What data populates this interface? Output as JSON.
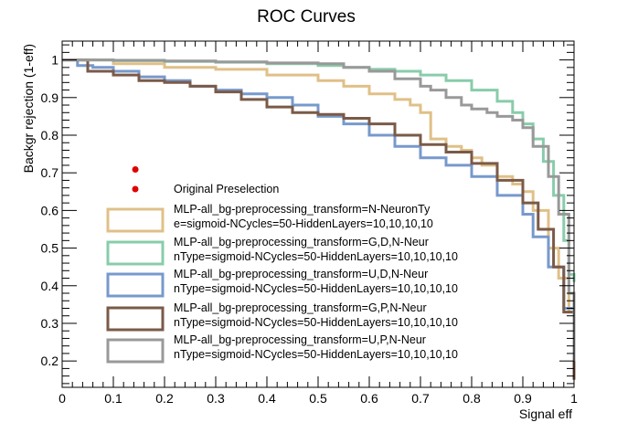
{
  "chart_data": {
    "type": "line",
    "title": "ROC Curves",
    "xlabel": "Signal eff",
    "ylabel": "Backgr rejection (1-eff)",
    "xlim": [
      0,
      1
    ],
    "ylim": [
      0.13,
      1.05
    ],
    "x_ticks": [
      0,
      0.1,
      0.2,
      0.3,
      0.4,
      0.5,
      0.6,
      0.7,
      0.8,
      0.9,
      1
    ],
    "x_tick_labels": [
      "0",
      "0.1",
      "0.2",
      "0.3",
      "0.4",
      "0.5",
      "0.6",
      "0.7",
      "0.8",
      "0.9",
      "1"
    ],
    "y_ticks": [
      0.2,
      0.3,
      0.4,
      0.5,
      0.6,
      0.7,
      0.8,
      0.9,
      1
    ],
    "y_tick_labels": [
      "0.2",
      "0.3",
      "0.4",
      "0.5",
      "0.6",
      "0.7",
      "0.8",
      "0.9",
      "1"
    ],
    "grid": false,
    "legend_position": "bottom-left",
    "marker": {
      "name": "Original Preselection",
      "x": 0.143,
      "y": 0.709,
      "color": "#e00000"
    },
    "series": [
      {
        "name": "MLP-all_bg-preprocessing_transform=N-NeuronType=sigmoid-NCycles=50-HiddenLayers=10,10,10,10",
        "legend_lines": [
          "MLP-all_bg-preprocessing_transform=N-NeuronTy",
          "e=sigmoid-NCycles=50-HiddenLayers=10,10,10,10"
        ],
        "color": "#e0c088",
        "x": [
          0,
          0.1,
          0.2,
          0.3,
          0.4,
          0.5,
          0.55,
          0.6,
          0.65,
          0.68,
          0.7,
          0.72,
          0.75,
          0.78,
          0.8,
          0.82,
          0.85,
          0.88,
          0.9,
          0.92,
          0.95,
          0.97,
          0.99,
          1.0
        ],
        "y": [
          1.0,
          0.99,
          0.98,
          0.975,
          0.96,
          0.945,
          0.93,
          0.91,
          0.895,
          0.88,
          0.86,
          0.79,
          0.77,
          0.76,
          0.74,
          0.72,
          0.69,
          0.67,
          0.65,
          0.6,
          0.5,
          0.42,
          0.33,
          0.2
        ]
      },
      {
        "name": "MLP-all_bg-preprocessing_transform=G,D,N-NeuronType=sigmoid-NCycles=50-HiddenLayers=10,10,10,10",
        "legend_lines": [
          "MLP-all_bg-preprocessing_transform=G,D,N-Neur",
          "nType=sigmoid-NCycles=50-HiddenLayers=10,10,10,10"
        ],
        "color": "#88ccaa",
        "x": [
          0,
          0.1,
          0.2,
          0.3,
          0.4,
          0.5,
          0.55,
          0.6,
          0.65,
          0.7,
          0.75,
          0.8,
          0.85,
          0.88,
          0.9,
          0.92,
          0.94,
          0.96,
          0.98,
          0.99,
          1.0
        ],
        "y": [
          1.0,
          0.998,
          0.996,
          0.994,
          0.99,
          0.985,
          0.98,
          0.975,
          0.97,
          0.96,
          0.945,
          0.92,
          0.89,
          0.86,
          0.83,
          0.79,
          0.73,
          0.64,
          0.52,
          0.43,
          0.41
        ]
      },
      {
        "name": "MLP-all_bg-preprocessing_transform=U,D,N-NeuronType=sigmoid-NCycles=50-HiddenLayers=10,10,10,10",
        "legend_lines": [
          "MLP-all_bg-preprocessing_transform=U,D,N-Neur",
          "nType=sigmoid-NCycles=50-HiddenLayers=10,10,10,10"
        ],
        "color": "#7799cc",
        "x": [
          0,
          0.03,
          0.06,
          0.1,
          0.15,
          0.2,
          0.25,
          0.3,
          0.35,
          0.4,
          0.45,
          0.5,
          0.55,
          0.6,
          0.65,
          0.7,
          0.75,
          0.8,
          0.85,
          0.9,
          0.92,
          0.95,
          0.98,
          1.0
        ],
        "y": [
          1.0,
          0.985,
          0.98,
          0.97,
          0.955,
          0.945,
          0.93,
          0.92,
          0.91,
          0.9,
          0.88,
          0.85,
          0.83,
          0.8,
          0.77,
          0.74,
          0.72,
          0.69,
          0.64,
          0.59,
          0.53,
          0.45,
          0.34,
          0.16
        ]
      },
      {
        "name": "MLP-all_bg-preprocessing_transform=G,P,N-NeuronType=sigmoid-NCycles=50-HiddenLayers=10,10,10,10",
        "legend_lines": [
          "MLP-all_bg-preprocessing_transform=G,P,N-Neur",
          "nType=sigmoid-NCycles=50-HiddenLayers=10,10,10,10"
        ],
        "color": "#7a5a48",
        "x": [
          0,
          0.05,
          0.1,
          0.15,
          0.2,
          0.25,
          0.3,
          0.35,
          0.4,
          0.45,
          0.5,
          0.55,
          0.6,
          0.65,
          0.7,
          0.75,
          0.8,
          0.85,
          0.9,
          0.93,
          0.96,
          0.98,
          1.0
        ],
        "y": [
          1.0,
          0.97,
          0.96,
          0.945,
          0.94,
          0.93,
          0.915,
          0.895,
          0.875,
          0.86,
          0.855,
          0.845,
          0.83,
          0.8,
          0.775,
          0.755,
          0.725,
          0.68,
          0.62,
          0.55,
          0.45,
          0.33,
          0.15
        ]
      },
      {
        "name": "MLP-all_bg-preprocessing_transform=U,P,N-NeuronType=sigmoid-NCycles=50-HiddenLayers=10,10,10,10",
        "legend_lines": [
          "MLP-all_bg-preprocessing_transform=U,P,N-Neur",
          "nType=sigmoid-NCycles=50-HiddenLayers=10,10,10,10"
        ],
        "color": "#999999",
        "x": [
          0,
          0.1,
          0.2,
          0.3,
          0.4,
          0.5,
          0.55,
          0.6,
          0.65,
          0.7,
          0.72,
          0.75,
          0.78,
          0.8,
          0.83,
          0.85,
          0.88,
          0.9,
          0.92,
          0.95,
          0.97,
          0.99,
          1.0
        ],
        "y": [
          1.0,
          0.999,
          0.997,
          0.995,
          0.992,
          0.99,
          0.98,
          0.97,
          0.95,
          0.93,
          0.92,
          0.9,
          0.88,
          0.87,
          0.86,
          0.85,
          0.84,
          0.82,
          0.77,
          0.69,
          0.59,
          0.38,
          0.2
        ]
      }
    ]
  }
}
